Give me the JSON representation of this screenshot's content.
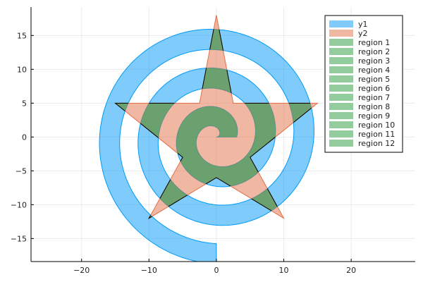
{
  "chart_data": {
    "type": "area",
    "title": "",
    "xlabel": "",
    "ylabel": "",
    "xlim": [
      -27.5,
      29.5
    ],
    "ylim": [
      -18.4,
      19.2
    ],
    "grid": true,
    "legend_position": "top-right",
    "x_ticks": [
      "-20",
      "-10",
      "0",
      "10",
      "20"
    ],
    "y_ticks": [
      "-15",
      "-10",
      "-5",
      "0",
      "5",
      "10",
      "15"
    ],
    "series": [
      {
        "name": "y1",
        "kind": "spiral-band",
        "color": "#009af9",
        "fill_opacity": 0.5,
        "center": [
          0,
          0
        ],
        "turns": 2.75,
        "inner_radius_growth": 5.73,
        "band_width": 3.0
      },
      {
        "name": "y2",
        "kind": "star",
        "color": "#e26f46",
        "fill_opacity": 0.5,
        "vertices": [
          [
            0,
            18
          ],
          [
            2.5,
            5
          ],
          [
            15,
            5
          ],
          [
            5,
            -3
          ],
          [
            10,
            -12
          ],
          [
            0,
            -6
          ],
          [
            -10,
            -12
          ],
          [
            -5,
            -3
          ],
          [
            -15,
            5
          ],
          [
            -2.5,
            5
          ]
        ]
      }
    ],
    "regions": [
      {
        "name": "region 1"
      },
      {
        "name": "region 2"
      },
      {
        "name": "region 3"
      },
      {
        "name": "region 4"
      },
      {
        "name": "region 5"
      },
      {
        "name": "region 6"
      },
      {
        "name": "region 7"
      },
      {
        "name": "region 8"
      },
      {
        "name": "region 9"
      },
      {
        "name": "region 10"
      },
      {
        "name": "region 11"
      },
      {
        "name": "region 12"
      }
    ],
    "colors": {
      "y1": "#009af9",
      "y2": "#e26f46",
      "region": "#3da44d",
      "intersection_outline": "#000000"
    }
  }
}
